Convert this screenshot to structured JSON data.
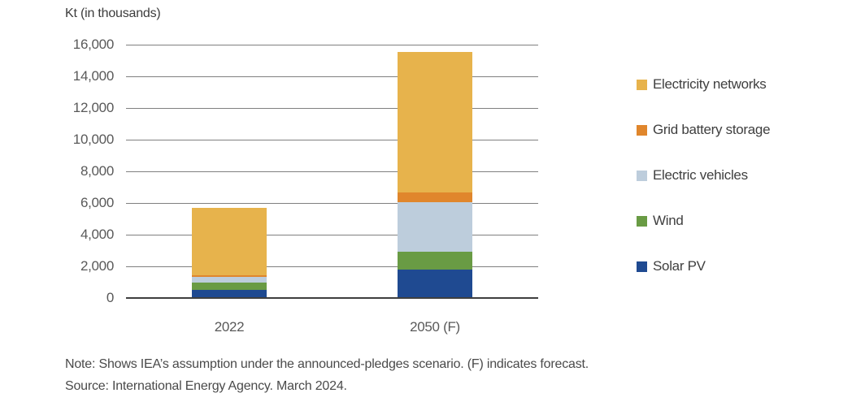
{
  "chart_data": {
    "type": "bar",
    "subtype": "stacked",
    "title": "Kt (in thousands)",
    "unit": "Kt",
    "categories": [
      "2022",
      "2050 (F)"
    ],
    "series": [
      {
        "name": "Solar PV",
        "color": "#1f4a91",
        "values": [
          500,
          1800
        ]
      },
      {
        "name": "Wind",
        "color": "#699b44",
        "values": [
          460,
          1100
        ]
      },
      {
        "name": "Electric vehicles",
        "color": "#bdcddc",
        "values": [
          360,
          3150
        ]
      },
      {
        "name": "Grid battery storage",
        "color": "#e0862c",
        "values": [
          100,
          600
        ]
      },
      {
        "name": "Electricity networks",
        "color": "#e7b34c",
        "values": [
          4250,
          8900
        ]
      }
    ],
    "totals": [
      5670,
      15550
    ],
    "ylim": [
      0,
      16000
    ],
    "ytick_step": 2000,
    "grid": true,
    "legend_position": "right",
    "legend_order_top_to_bottom": [
      "Electricity networks",
      "Grid battery storage",
      "Electric vehicles",
      "Wind",
      "Solar PV"
    ]
  },
  "footer": {
    "note": "Note: Shows IEA’s assumption under the announced-pledges scenario. (F) indicates forecast.",
    "source": "Source: International Energy Agency. March 2024."
  },
  "colors": {
    "gridline": "#808080",
    "axis": "#3f3f3f",
    "tick_text": "#595959",
    "legend_text": "#3f3f3f",
    "note_text": "#4a4a4a"
  }
}
